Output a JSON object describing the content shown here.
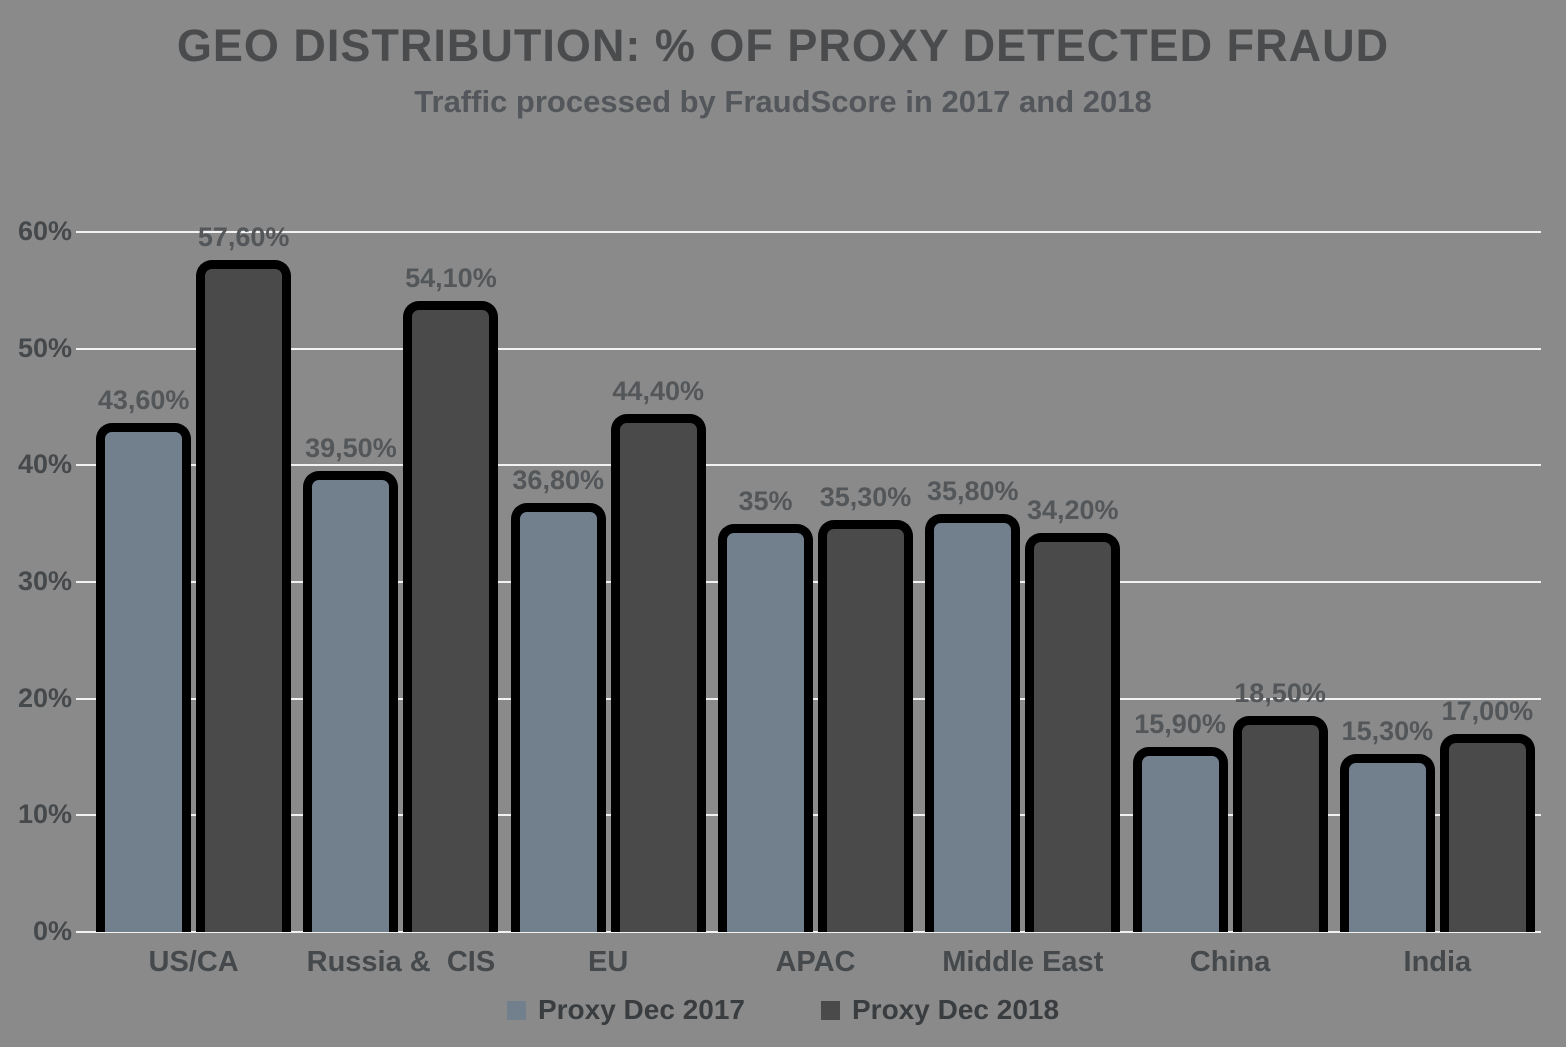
{
  "chart_data": {
    "type": "bar",
    "title": "GEO DISTRIBUTION: % OF PROXY DETECTED FRAUD",
    "subtitle": "Traffic processed by FraudScore in 2017 and 2018",
    "categories": [
      "US/CA",
      "Russia &  CIS",
      "EU",
      "APAC",
      "Middle East",
      "China",
      "India"
    ],
    "series": [
      {
        "name": "Proxy Dec 2017",
        "color": "#72808E",
        "values": [
          43.6,
          39.5,
          36.8,
          35,
          35.8,
          15.9,
          15.3
        ],
        "labels": [
          "43,60%",
          "39,50%",
          "36,80%",
          "35%",
          "35,80%",
          "15,90%",
          "15,30%"
        ]
      },
      {
        "name": "Proxy Dec 2018",
        "color": "#4A4A4A",
        "values": [
          57.6,
          54.1,
          44.4,
          35.3,
          34.2,
          18.5,
          17
        ],
        "labels": [
          "57,60%",
          "54,10%",
          "44,40%",
          "35,30%",
          "34,20%",
          "18,50%",
          "17,00%"
        ]
      }
    ],
    "y_axis": {
      "min": 0,
      "max": 60,
      "step": 10,
      "tick_values": [
        0,
        10,
        20,
        30,
        40,
        50,
        60
      ],
      "tick_labels": [
        "0%",
        "10%",
        "20%",
        "30%",
        "40%",
        "50%",
        "60%"
      ]
    },
    "xlabel": "",
    "ylabel": "",
    "grid": true,
    "legend_position": "bottom",
    "colors": {
      "background": "#8A8A8A",
      "bar_border": "#000000",
      "gridline": "#F2F2F2",
      "data_label": "#54575A",
      "axis_label": "#45494C",
      "title": "#494B4D",
      "subtitle": "#53565A",
      "legend_text": "#3A3D40"
    }
  }
}
